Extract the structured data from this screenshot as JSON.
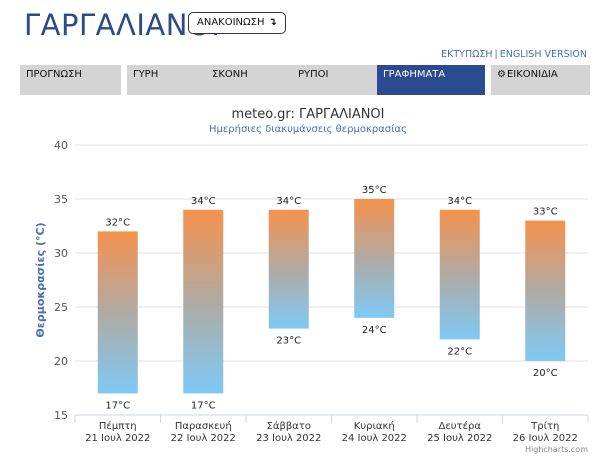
{
  "header": {
    "title": "ΓΑΡΓΑΛΙΑΝΟΙ",
    "announce_label": "ΑΝΑΚΟΙΝΩΣΗ",
    "announce_icon": "arrow-down-icon",
    "print_link": "ΕΚΤΥΠΩΣΗ",
    "link_separator": "|",
    "english_link": "ENGLISH VERSION"
  },
  "tabs": [
    {
      "label": "ΠΡΟΓΝΩΣΗ"
    },
    {
      "label": "ΓΥΡΗ"
    },
    {
      "label": "ΣΚΟΝΗ"
    },
    {
      "label": "ΡΥΠΟΙ"
    },
    {
      "label": "ΓΡΑΦΗΜΑΤΑ",
      "active": true
    },
    {
      "label": "ΕΙΚΟΝΙΔΙΑ",
      "icon": "gear-icon"
    }
  ],
  "colors": {
    "accent": "#2a4b8f",
    "tab_bg": "#d4d4d4",
    "bar_top": "#f5924d",
    "bar_bottom": "#7ec9f5"
  },
  "chart_data": {
    "type": "bar",
    "subtype": "columnrange",
    "title": "meteo.gr: ΓΑΡΓΑΛΙΑΝΟΙ",
    "subtitle": "Ημερήσιες διακυμάνσεις θερμοκρασίας",
    "ylabel": "Θερμοκρασίες (°C)",
    "ylim": [
      15,
      40
    ],
    "yticks": [
      15,
      20,
      25,
      30,
      35,
      40
    ],
    "grid": true,
    "categories": [
      {
        "day": "Πέμπτη",
        "date": "21 Ιουλ 2022"
      },
      {
        "day": "Παρασκευή",
        "date": "22 Ιουλ 2022"
      },
      {
        "day": "Σάββατο",
        "date": "23 Ιουλ 2022"
      },
      {
        "day": "Κυριακή",
        "date": "24 Ιουλ 2022"
      },
      {
        "day": "Δευτέρα",
        "date": "25 Ιουλ 2022"
      },
      {
        "day": "Τρίτη",
        "date": "26 Ιουλ 2022"
      }
    ],
    "series": [
      {
        "low": 17,
        "high": 32
      },
      {
        "low": 17,
        "high": 34
      },
      {
        "low": 23,
        "high": 34
      },
      {
        "low": 24,
        "high": 35
      },
      {
        "low": 22,
        "high": 34
      },
      {
        "low": 20,
        "high": 33
      }
    ],
    "unit_suffix": "°C",
    "credits": "Highcharts.com"
  }
}
